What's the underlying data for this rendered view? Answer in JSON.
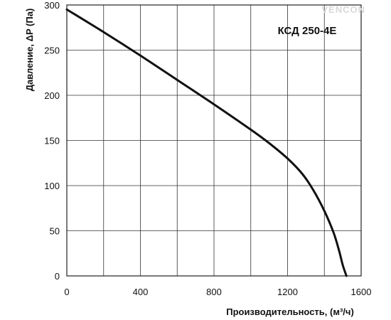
{
  "chart_data": {
    "type": "line",
    "title": "КСД 250-4Е",
    "xlabel": "Производительность, (м³/ч)",
    "ylabel": "Давление, ΔP (Па)",
    "xlim": [
      0,
      1600
    ],
    "ylim": [
      0,
      300
    ],
    "x_ticks": [
      "0",
      "400",
      "800",
      "1200",
      "1600"
    ],
    "y_ticks": [
      "0",
      "50",
      "100",
      "150",
      "200",
      "250",
      "300"
    ],
    "x_grid_step": 200,
    "y_grid_step": 50,
    "grid": true,
    "series": [
      {
        "color": "#111111",
        "x": [
          0,
          200,
          400,
          600,
          800,
          1000,
          1100,
          1200,
          1280,
          1340,
          1400,
          1450,
          1480,
          1500,
          1520
        ],
        "y": [
          295,
          270,
          244,
          217,
          190,
          162,
          147,
          130,
          113,
          95,
          72,
          48,
          28,
          12,
          0
        ]
      }
    ]
  },
  "watermark": {
    "text": "VENCON",
    "color": "#d9d9d9"
  }
}
